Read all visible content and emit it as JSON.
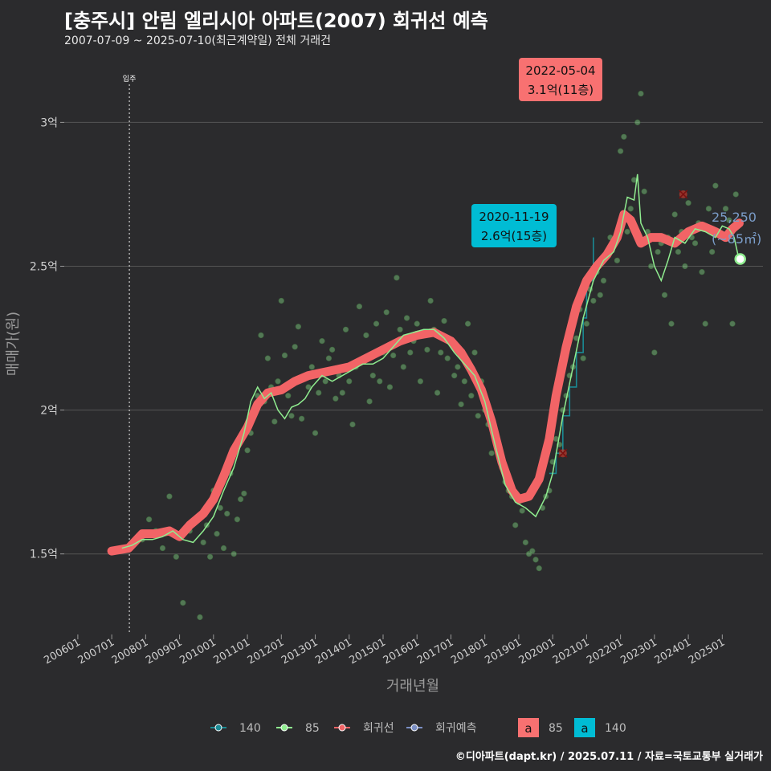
{
  "header": {
    "title": "[충주시] 안림 엘리시아 아파트(2007) 회귀선 예측",
    "subtitle": "2007-07-09 ~ 2025-07-10(최근계약일) 전체 거래건"
  },
  "footer": {
    "credit": "©디아파트(dapt.kr) / 2025.07.11 / 자료=국토교통부 실거래가"
  },
  "colors": {
    "background": "#2b2b2d",
    "grid": "#555555",
    "s85": "#90ee90",
    "s140": "#1a8a94",
    "regression": "#f26466",
    "forecast": "#7b8fc4",
    "label85": "#f87171",
    "label140": "#00bcd4",
    "endLabel": "#7b9dc9"
  },
  "chart_data": {
    "type": "scatter",
    "xlabel": "거래년월",
    "ylabel": "매매가(원)",
    "x_unit": "year (decimal)",
    "y_unit": "억원",
    "xlim": [
      2005.6,
      2026.2
    ],
    "ylim": [
      1.22,
      3.23
    ],
    "y_ticks": [
      {
        "value": 1.5,
        "label": "1.5억"
      },
      {
        "value": 2.0,
        "label": "2억"
      },
      {
        "value": 2.5,
        "label": "2.5억"
      },
      {
        "value": 3.0,
        "label": "3억"
      }
    ],
    "x_ticks": [
      {
        "value": 2006.0,
        "label": "200601"
      },
      {
        "value": 2007.0,
        "label": "200701"
      },
      {
        "value": 2008.0,
        "label": "200801"
      },
      {
        "value": 2009.0,
        "label": "200901"
      },
      {
        "value": 2010.0,
        "label": "201001"
      },
      {
        "value": 2011.0,
        "label": "201101"
      },
      {
        "value": 2012.0,
        "label": "201201"
      },
      {
        "value": 2013.0,
        "label": "201301"
      },
      {
        "value": 2014.0,
        "label": "201401"
      },
      {
        "value": 2015.0,
        "label": "201501"
      },
      {
        "value": 2016.0,
        "label": "201601"
      },
      {
        "value": 2017.0,
        "label": "201701"
      },
      {
        "value": 2018.0,
        "label": "201801"
      },
      {
        "value": 2019.0,
        "label": "201901"
      },
      {
        "value": 2020.0,
        "label": "202001"
      },
      {
        "value": 2021.0,
        "label": "202101"
      },
      {
        "value": 2022.0,
        "label": "202201"
      },
      {
        "value": 2023.0,
        "label": "202301"
      },
      {
        "value": 2024.0,
        "label": "202401"
      },
      {
        "value": 2025.0,
        "label": "202501"
      }
    ],
    "vline": {
      "x": 2007.52,
      "label": "입주"
    },
    "series": [
      {
        "name": "회귀선",
        "kind": "regression",
        "x": [
          2007.0,
          2007.5,
          2007.9,
          2008.3,
          2008.7,
          2009.0,
          2009.3,
          2009.7,
          2010.0,
          2010.3,
          2010.6,
          2011.0,
          2011.3,
          2011.6,
          2012.0,
          2012.4,
          2012.8,
          2013.2,
          2013.6,
          2014.0,
          2014.5,
          2015.0,
          2015.5,
          2016.0,
          2016.5,
          2017.0,
          2017.3,
          2017.6,
          2017.9,
          2018.2,
          2018.5,
          2018.8,
          2019.0,
          2019.3,
          2019.6,
          2019.9,
          2020.1,
          2020.4,
          2020.7,
          2021.0,
          2021.3,
          2021.6,
          2021.9,
          2022.1,
          2022.3,
          2022.6,
          2022.9,
          2023.2,
          2023.6,
          2024.0,
          2024.4,
          2024.8,
          2025.1,
          2025.3,
          2025.5
        ],
        "y": [
          1.51,
          1.52,
          1.57,
          1.57,
          1.58,
          1.56,
          1.6,
          1.64,
          1.69,
          1.77,
          1.86,
          1.94,
          2.02,
          2.06,
          2.07,
          2.1,
          2.12,
          2.13,
          2.14,
          2.15,
          2.18,
          2.21,
          2.24,
          2.26,
          2.27,
          2.24,
          2.2,
          2.14,
          2.07,
          1.96,
          1.82,
          1.72,
          1.69,
          1.7,
          1.76,
          1.9,
          2.05,
          2.22,
          2.36,
          2.45,
          2.5,
          2.54,
          2.6,
          2.68,
          2.66,
          2.58,
          2.6,
          2.6,
          2.58,
          2.62,
          2.64,
          2.62,
          2.6,
          2.63,
          2.65
        ]
      },
      {
        "name": "85",
        "kind": "line",
        "x": [
          2007.3,
          2007.6,
          2007.9,
          2008.2,
          2008.5,
          2008.8,
          2009.1,
          2009.4,
          2009.7,
          2010.0,
          2010.3,
          2010.6,
          2010.9,
          2011.1,
          2011.3,
          2011.5,
          2011.7,
          2011.9,
          2012.1,
          2012.3,
          2012.5,
          2012.7,
          2012.9,
          2013.2,
          2013.5,
          2013.8,
          2014.1,
          2014.4,
          2014.7,
          2015.0,
          2015.3,
          2015.6,
          2015.9,
          2016.2,
          2016.5,
          2016.8,
          2017.1,
          2017.4,
          2017.7,
          2018.0,
          2018.3,
          2018.6,
          2018.9,
          2019.2,
          2019.5,
          2019.8,
          2020.0,
          2020.3,
          2020.6,
          2020.9,
          2021.2,
          2021.5,
          2021.8,
          2022.0,
          2022.2,
          2022.4,
          2022.5,
          2022.6,
          2022.8,
          2023.0,
          2023.2,
          2023.4,
          2023.6,
          2023.9,
          2024.2,
          2024.5,
          2024.8,
          2025.0,
          2025.2,
          2025.35,
          2025.5
        ],
        "y": [
          1.52,
          1.53,
          1.55,
          1.55,
          1.56,
          1.58,
          1.55,
          1.54,
          1.58,
          1.63,
          1.72,
          1.8,
          1.92,
          2.03,
          2.08,
          2.04,
          2.06,
          2.0,
          1.97,
          2.01,
          2.02,
          2.04,
          2.08,
          2.12,
          2.1,
          2.12,
          2.14,
          2.16,
          2.16,
          2.18,
          2.22,
          2.26,
          2.27,
          2.28,
          2.28,
          2.25,
          2.2,
          2.16,
          2.12,
          2.03,
          1.88,
          1.74,
          1.68,
          1.66,
          1.63,
          1.7,
          1.78,
          1.98,
          2.15,
          2.32,
          2.45,
          2.52,
          2.55,
          2.62,
          2.74,
          2.73,
          2.82,
          2.65,
          2.6,
          2.5,
          2.45,
          2.52,
          2.6,
          2.58,
          2.63,
          2.62,
          2.6,
          2.64,
          2.63,
          2.6,
          2.52
        ]
      },
      {
        "name": "140",
        "kind": "step",
        "x": [
          2019.9,
          2020.1,
          2020.3,
          2020.5,
          2020.7,
          2020.9,
          2021.0,
          2021.2
        ],
        "y": [
          1.78,
          1.85,
          1.98,
          2.08,
          2.2,
          2.32,
          2.45,
          2.6
        ]
      }
    ],
    "scatter_points": [
      [
        2007.9,
        1.55
      ],
      [
        2008.1,
        1.62
      ],
      [
        2008.3,
        1.58
      ],
      [
        2008.5,
        1.52
      ],
      [
        2008.7,
        1.7
      ],
      [
        2008.9,
        1.49
      ],
      [
        2009.1,
        1.33
      ],
      [
        2009.3,
        1.58
      ],
      [
        2009.5,
        1.62
      ],
      [
        2009.6,
        1.28
      ],
      [
        2009.7,
        1.54
      ],
      [
        2009.8,
        1.6
      ],
      [
        2009.9,
        1.49
      ],
      [
        2010.0,
        1.72
      ],
      [
        2010.1,
        1.57
      ],
      [
        2010.2,
        1.66
      ],
      [
        2010.3,
        1.52
      ],
      [
        2010.4,
        1.64
      ],
      [
        2010.5,
        1.78
      ],
      [
        2010.6,
        1.5
      ],
      [
        2010.7,
        1.62
      ],
      [
        2010.8,
        1.69
      ],
      [
        2010.9,
        1.71
      ],
      [
        2011.0,
        1.86
      ],
      [
        2011.1,
        1.92
      ],
      [
        2011.2,
        2.0
      ],
      [
        2011.3,
        2.05
      ],
      [
        2011.4,
        2.26
      ],
      [
        2011.5,
        2.03
      ],
      [
        2011.6,
        2.18
      ],
      [
        2011.7,
        2.08
      ],
      [
        2011.8,
        1.96
      ],
      [
        2011.9,
        2.1
      ],
      [
        2012.0,
        2.38
      ],
      [
        2012.1,
        2.19
      ],
      [
        2012.2,
        2.05
      ],
      [
        2012.3,
        1.98
      ],
      [
        2012.4,
        2.22
      ],
      [
        2012.5,
        2.29
      ],
      [
        2012.6,
        1.97
      ],
      [
        2012.7,
        2.12
      ],
      [
        2012.8,
        2.08
      ],
      [
        2012.9,
        2.15
      ],
      [
        2013.0,
        1.92
      ],
      [
        2013.1,
        2.06
      ],
      [
        2013.2,
        2.24
      ],
      [
        2013.3,
        2.1
      ],
      [
        2013.4,
        2.18
      ],
      [
        2013.5,
        2.21
      ],
      [
        2013.6,
        2.04
      ],
      [
        2013.7,
        2.12
      ],
      [
        2013.8,
        2.06
      ],
      [
        2013.9,
        2.28
      ],
      [
        2014.0,
        2.1
      ],
      [
        2014.1,
        1.95
      ],
      [
        2014.2,
        2.15
      ],
      [
        2014.3,
        2.36
      ],
      [
        2014.4,
        2.18
      ],
      [
        2014.5,
        2.26
      ],
      [
        2014.6,
        2.03
      ],
      [
        2014.7,
        2.12
      ],
      [
        2014.8,
        2.3
      ],
      [
        2014.9,
        2.1
      ],
      [
        2015.0,
        2.2
      ],
      [
        2015.1,
        2.34
      ],
      [
        2015.2,
        2.08
      ],
      [
        2015.3,
        2.19
      ],
      [
        2015.4,
        2.46
      ],
      [
        2015.5,
        2.28
      ],
      [
        2015.6,
        2.15
      ],
      [
        2015.7,
        2.32
      ],
      [
        2015.8,
        2.2
      ],
      [
        2015.9,
        2.24
      ],
      [
        2016.0,
        2.3
      ],
      [
        2016.1,
        2.1
      ],
      [
        2016.2,
        2.27
      ],
      [
        2016.3,
        2.21
      ],
      [
        2016.4,
        2.38
      ],
      [
        2016.5,
        2.28
      ],
      [
        2016.6,
        2.06
      ],
      [
        2016.7,
        2.2
      ],
      [
        2016.8,
        2.31
      ],
      [
        2016.9,
        2.18
      ],
      [
        2017.0,
        2.24
      ],
      [
        2017.1,
        2.12
      ],
      [
        2017.2,
        2.15
      ],
      [
        2017.3,
        2.02
      ],
      [
        2017.4,
        2.1
      ],
      [
        2017.5,
        2.3
      ],
      [
        2017.6,
        2.05
      ],
      [
        2017.7,
        2.2
      ],
      [
        2017.8,
        1.98
      ],
      [
        2017.9,
        2.1
      ],
      [
        2018.0,
        2.0
      ],
      [
        2018.1,
        1.95
      ],
      [
        2018.2,
        1.85
      ],
      [
        2018.3,
        1.9
      ],
      [
        2018.4,
        1.88
      ],
      [
        2018.5,
        1.8
      ],
      [
        2018.6,
        1.75
      ],
      [
        2018.7,
        1.72
      ],
      [
        2018.8,
        1.7
      ],
      [
        2018.9,
        1.6
      ],
      [
        2019.0,
        1.68
      ],
      [
        2019.1,
        1.65
      ],
      [
        2019.2,
        1.54
      ],
      [
        2019.3,
        1.5
      ],
      [
        2019.4,
        1.51
      ],
      [
        2019.5,
        1.48
      ],
      [
        2019.6,
        1.45
      ],
      [
        2019.7,
        1.66
      ],
      [
        2019.8,
        1.7
      ],
      [
        2019.9,
        1.72
      ],
      [
        2020.0,
        1.82
      ],
      [
        2020.1,
        1.9
      ],
      [
        2020.2,
        1.88
      ],
      [
        2020.3,
        2.0
      ],
      [
        2020.4,
        2.05
      ],
      [
        2020.5,
        2.12
      ],
      [
        2020.6,
        2.15
      ],
      [
        2020.7,
        2.25
      ],
      [
        2020.8,
        2.35
      ],
      [
        2020.9,
        2.18
      ],
      [
        2021.0,
        2.3
      ],
      [
        2021.1,
        2.42
      ],
      [
        2021.2,
        2.38
      ],
      [
        2021.3,
        2.48
      ],
      [
        2021.4,
        2.4
      ],
      [
        2021.5,
        2.45
      ],
      [
        2021.6,
        2.55
      ],
      [
        2021.7,
        2.6
      ],
      [
        2021.8,
        2.58
      ],
      [
        2021.9,
        2.52
      ],
      [
        2022.0,
        2.9
      ],
      [
        2022.1,
        2.95
      ],
      [
        2022.2,
        2.62
      ],
      [
        2022.3,
        2.7
      ],
      [
        2022.4,
        2.8
      ],
      [
        2022.5,
        3.0
      ],
      [
        2022.6,
        3.1
      ],
      [
        2022.7,
        2.76
      ],
      [
        2022.8,
        2.62
      ],
      [
        2022.9,
        2.5
      ],
      [
        2023.0,
        2.2
      ],
      [
        2023.1,
        2.55
      ],
      [
        2023.2,
        2.58
      ],
      [
        2023.3,
        2.4
      ],
      [
        2023.4,
        2.6
      ],
      [
        2023.5,
        2.3
      ],
      [
        2023.6,
        2.68
      ],
      [
        2023.7,
        2.55
      ],
      [
        2023.8,
        2.62
      ],
      [
        2023.9,
        2.5
      ],
      [
        2024.0,
        2.72
      ],
      [
        2024.1,
        2.6
      ],
      [
        2024.2,
        2.58
      ],
      [
        2024.3,
        2.65
      ],
      [
        2024.4,
        2.48
      ],
      [
        2024.5,
        2.3
      ],
      [
        2024.6,
        2.7
      ],
      [
        2024.7,
        2.55
      ],
      [
        2024.8,
        2.78
      ],
      [
        2024.9,
        2.62
      ],
      [
        2025.0,
        2.6
      ],
      [
        2025.1,
        2.7
      ],
      [
        2025.2,
        2.66
      ],
      [
        2025.3,
        2.3
      ],
      [
        2025.4,
        2.75
      ]
    ],
    "x_markers": [
      {
        "x": 2023.85,
        "y": 2.75,
        "series": "85"
      },
      {
        "x": 2020.3,
        "y": 1.85,
        "series": "85"
      }
    ],
    "forecast_point": {
      "x": 2025.53,
      "y": 2.525
    },
    "annotations": [
      {
        "date": "2022-05-04",
        "value": "3.1억(11층)",
        "series": "85",
        "x": 2022.34,
        "y": 3.1
      },
      {
        "date": "2020-11-19",
        "value": "2.6억(15층)",
        "series": "140",
        "x": 2020.88,
        "y": 2.6
      }
    ],
    "end_label": {
      "line1": "25,250",
      "line2": "(~85㎡)"
    },
    "legend": {
      "position": "bottom",
      "items": [
        {
          "label": "140",
          "kind": "line",
          "series": "140"
        },
        {
          "label": "85",
          "kind": "line",
          "series": "85"
        },
        {
          "label": "회귀선",
          "kind": "line",
          "series": "regression"
        },
        {
          "label": "회귀예측",
          "kind": "line",
          "series": "forecast"
        },
        {
          "label": "85",
          "kind": "box",
          "key": "a",
          "series": "85"
        },
        {
          "label": "140",
          "kind": "box",
          "key": "a",
          "series": "140"
        }
      ]
    }
  }
}
